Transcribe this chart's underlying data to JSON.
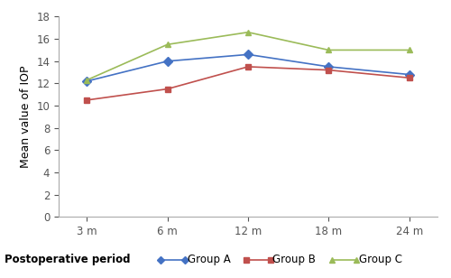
{
  "x_labels": [
    "3 m",
    "6 m",
    "12 m",
    "18 m",
    "24 m"
  ],
  "x_positions": [
    0,
    1,
    2,
    3,
    4
  ],
  "group_A": [
    12.2,
    14.0,
    14.6,
    13.5,
    12.8
  ],
  "group_B": [
    10.5,
    11.5,
    13.5,
    13.2,
    12.5
  ],
  "group_C": [
    12.3,
    15.5,
    16.6,
    15.0,
    15.0
  ],
  "color_A": "#4472C4",
  "color_B": "#C0504D",
  "color_C": "#9BBB59",
  "ylabel": "Mean value of IOP",
  "xlabel_bold": "Postoperative period",
  "legend_labels": [
    "Group A",
    "Group B",
    "Group C"
  ],
  "ylim": [
    0,
    18
  ],
  "yticks": [
    0,
    2,
    4,
    6,
    8,
    10,
    12,
    14,
    16,
    18
  ],
  "marker_A": "D",
  "marker_B": "s",
  "marker_C": "^",
  "linewidth": 1.2,
  "markersize": 5,
  "tick_fontsize": 8.5,
  "ylabel_fontsize": 9,
  "legend_fontsize": 8.5,
  "xlabel_fontsize": 8.5
}
